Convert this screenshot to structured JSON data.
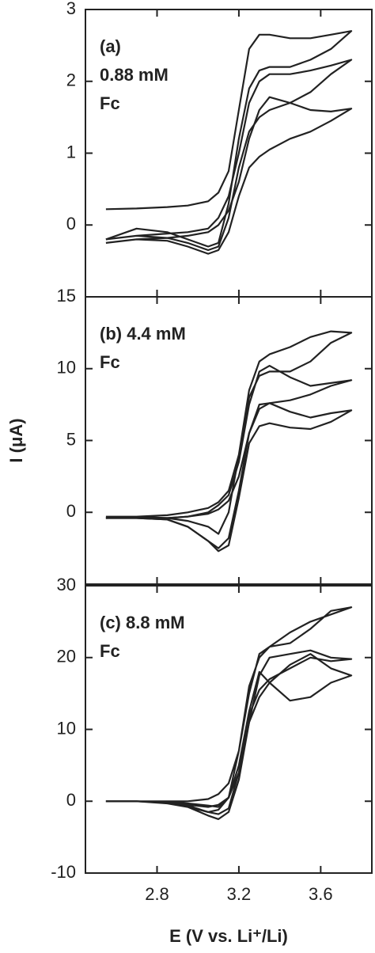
{
  "chart_data": [
    {
      "type": "line",
      "annotation": [
        "(a)",
        "0.88 mM",
        "Fc"
      ],
      "x": [
        2.55,
        2.7,
        2.85,
        2.95,
        3.05,
        3.1,
        3.15,
        3.2,
        3.25,
        3.3,
        3.35,
        3.45,
        3.55,
        3.65,
        3.75,
        3.65,
        3.55,
        3.45,
        3.35,
        3.3,
        3.25,
        3.2,
        3.15,
        3.1,
        3.05,
        2.95,
        2.85,
        2.7,
        2.55
      ],
      "series": [
        {
          "color": "#222222",
          "values": [
            0.22,
            0.23,
            0.25,
            0.27,
            0.33,
            0.45,
            0.75,
            1.6,
            2.45,
            2.65,
            2.65,
            2.6,
            2.6,
            2.65,
            2.7,
            2.45,
            2.3,
            2.2,
            2.2,
            2.15,
            1.9,
            1.2,
            0.3,
            -0.25,
            -0.3,
            -0.2,
            -0.1,
            -0.05,
            -0.2
          ]
        },
        {
          "color": "#222222",
          "values": [
            -0.2,
            -0.15,
            -0.12,
            -0.1,
            -0.05,
            0.1,
            0.4,
            1.0,
            1.7,
            2.0,
            2.1,
            2.1,
            2.15,
            2.22,
            2.3,
            2.1,
            1.85,
            1.7,
            1.6,
            1.5,
            1.3,
            0.8,
            0.1,
            -0.3,
            -0.35,
            -0.25,
            -0.18,
            -0.15,
            -0.2
          ]
        },
        {
          "color": "#222222",
          "values": [
            -0.25,
            -0.2,
            -0.18,
            -0.15,
            -0.1,
            0.0,
            0.2,
            0.6,
            1.2,
            1.6,
            1.78,
            1.7,
            1.6,
            1.58,
            1.62,
            1.45,
            1.3,
            1.2,
            1.05,
            0.95,
            0.8,
            0.4,
            -0.1,
            -0.35,
            -0.4,
            -0.3,
            -0.22,
            -0.2,
            -0.25
          ]
        }
      ],
      "xlim": [
        2.45,
        3.85
      ],
      "xticks": [
        2.8,
        3.2,
        3.6
      ],
      "ylim": [
        -1,
        3
      ],
      "yticks": [
        0,
        1,
        2,
        3
      ]
    },
    {
      "type": "line",
      "annotation": [
        "(b) 4.4 mM",
        "Fc"
      ],
      "ylabel": "I (μA)",
      "x": [
        2.55,
        2.7,
        2.85,
        2.95,
        3.05,
        3.1,
        3.15,
        3.2,
        3.25,
        3.3,
        3.35,
        3.45,
        3.55,
        3.65,
        3.75,
        3.65,
        3.55,
        3.45,
        3.35,
        3.3,
        3.25,
        3.2,
        3.15,
        3.1,
        3.05,
        2.95,
        2.85,
        2.7,
        2.55
      ],
      "series": [
        {
          "color": "#222222",
          "values": [
            -0.4,
            -0.3,
            -0.2,
            0.0,
            0.3,
            0.7,
            1.5,
            4.0,
            8.5,
            10.5,
            11.0,
            11.5,
            12.2,
            12.6,
            12.5,
            11.8,
            10.5,
            9.8,
            9.8,
            9.5,
            8.0,
            4.0,
            0.0,
            -1.5,
            -1.0,
            -0.6,
            -0.4,
            -0.3,
            -0.3
          ]
        },
        {
          "color": "#222222",
          "values": [
            -0.4,
            -0.4,
            -0.4,
            -0.3,
            0.0,
            0.5,
            1.2,
            3.5,
            7.5,
            9.8,
            10.2,
            9.4,
            8.8,
            9.0,
            9.2,
            8.8,
            8.2,
            7.8,
            7.6,
            7.2,
            5.5,
            1.5,
            -1.8,
            -2.5,
            -2.0,
            -1.0,
            -0.5,
            -0.4,
            -0.4
          ]
        },
        {
          "color": "#222222",
          "values": [
            -0.4,
            -0.4,
            -0.4,
            -0.3,
            -0.1,
            0.2,
            0.8,
            2.5,
            5.5,
            7.5,
            7.6,
            7.0,
            6.6,
            6.9,
            7.1,
            6.3,
            5.8,
            5.9,
            6.2,
            6.0,
            4.8,
            1.0,
            -2.3,
            -2.7,
            -2.0,
            -1.0,
            -0.5,
            -0.4,
            -0.4
          ]
        }
      ],
      "xlim": [
        2.45,
        3.85
      ],
      "xticks": [
        2.8,
        3.2,
        3.6
      ],
      "ylim": [
        -5,
        15
      ],
      "yticks": [
        0,
        5,
        10,
        15
      ]
    },
    {
      "type": "line",
      "annotation": [
        "(c) 8.8 mM",
        "Fc"
      ],
      "xlabel": "E (V vs. Li⁺/Li)",
      "x": [
        2.55,
        2.7,
        2.85,
        2.95,
        3.05,
        3.1,
        3.15,
        3.2,
        3.25,
        3.3,
        3.35,
        3.45,
        3.55,
        3.65,
        3.75,
        3.65,
        3.55,
        3.45,
        3.35,
        3.3,
        3.25,
        3.2,
        3.15,
        3.1,
        3.05,
        2.95,
        2.85,
        2.7,
        2.55
      ],
      "series": [
        {
          "color": "#222222",
          "values": [
            0,
            0,
            0,
            0,
            0.3,
            1.0,
            2.5,
            7.0,
            15.0,
            20.5,
            21.5,
            22.0,
            24.0,
            26.5,
            27.0,
            26.0,
            25.0,
            23.5,
            21.5,
            20.0,
            16.0,
            7.0,
            0.5,
            -0.8,
            -0.6,
            -0.3,
            0,
            0,
            0
          ]
        },
        {
          "color": "#222222",
          "values": [
            0,
            0,
            -0.2,
            -0.5,
            -0.8,
            -0.5,
            0.5,
            4.0,
            11.0,
            17.5,
            20.0,
            20.5,
            21.0,
            20.0,
            19.8,
            19.5,
            20.0,
            18.5,
            17.0,
            15.5,
            12.0,
            4.0,
            -1.0,
            -1.8,
            -1.5,
            -0.6,
            -0.2,
            0,
            0
          ]
        },
        {
          "color": "#222222",
          "values": [
            0,
            0,
            -0.3,
            -0.8,
            -1.5,
            -1.2,
            0.5,
            5.0,
            12.5,
            18.0,
            16.5,
            14.0,
            14.5,
            16.5,
            17.5,
            18.5,
            20.5,
            19.0,
            16.5,
            14.5,
            11.0,
            3.0,
            -1.5,
            -2.5,
            -2.0,
            -0.8,
            -0.3,
            0,
            0
          ]
        }
      ],
      "xlim": [
        2.45,
        3.85
      ],
      "xticks": [
        2.8,
        3.2,
        3.6
      ],
      "ylim": [
        -10,
        30
      ],
      "yticks": [
        -10,
        0,
        10,
        20,
        30
      ]
    }
  ]
}
